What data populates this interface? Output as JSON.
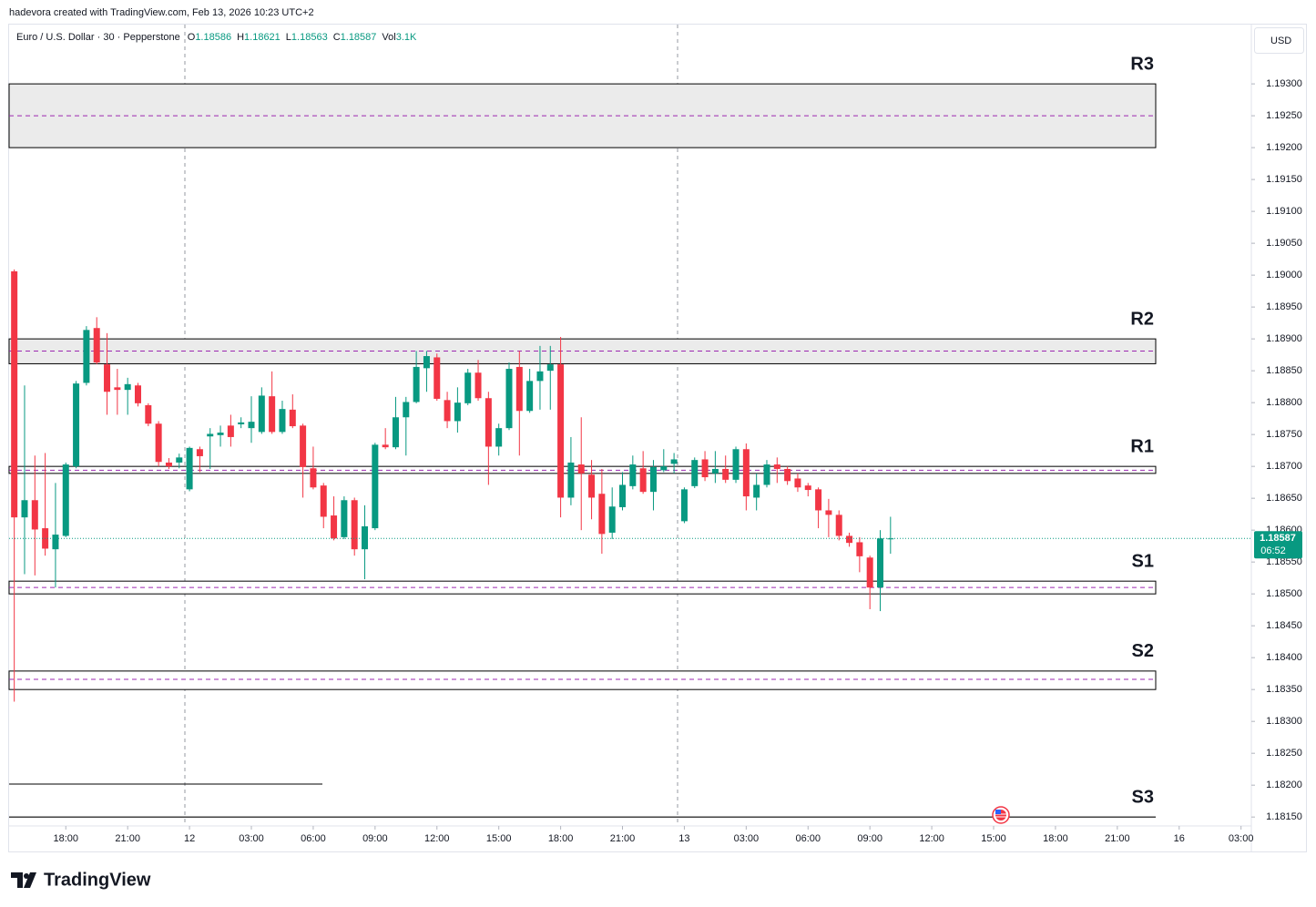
{
  "chart_data": {
    "type": "candlestick",
    "credit": "hadevora created with TradingView.com, Feb 13, 2026 10:23 UTC+2",
    "title": "Euro / U.S. Dollar · 30 · Pepperstone",
    "header_values": [
      {
        "key": "O",
        "value": 1.18586
      },
      {
        "key": "H",
        "value": 1.18621
      },
      {
        "key": "L",
        "value": 1.18563
      },
      {
        "key": "C",
        "value": 1.18587
      },
      {
        "key": "Vol",
        "value": "3.1K"
      }
    ],
    "currency": "USD",
    "logo": "TradingView",
    "up_color": "#089981",
    "down_color": "#f23645",
    "open": [
      1.19006,
      1.1862,
      1.18647,
      1.18603,
      1.1857,
      1.18591,
      1.187,
      1.18831,
      1.18917,
      1.1886,
      1.18824,
      1.1882,
      1.18827,
      1.18796,
      1.18767,
      1.18706,
      1.18706,
      1.18664,
      1.18727,
      1.18747,
      1.18749,
      1.18764,
      1.18766,
      1.1876,
      1.18754,
      1.1881,
      1.18754,
      1.18789,
      1.18764,
      1.18697,
      1.1867,
      1.18623,
      1.18589,
      1.18647,
      1.1857,
      1.18603,
      1.18734,
      1.1873,
      1.18777,
      1.18801,
      1.18854,
      1.18871,
      1.18804,
      1.18771,
      1.18799,
      1.18847,
      1.18807,
      1.18731,
      1.1876,
      1.18856,
      1.18787,
      1.18834,
      1.1885,
      1.1886,
      1.18651,
      1.18703,
      1.18687,
      1.18657,
      1.18596,
      1.18636,
      1.18669,
      1.18697,
      1.1866,
      1.18694,
      1.18704,
      1.18614,
      1.18669,
      1.18711,
      1.18689,
      1.18696,
      1.18679,
      1.18727,
      1.18651,
      1.18671,
      1.18703,
      1.18696,
      1.18681,
      1.1867,
      1.18664,
      1.18631,
      1.18624,
      1.18591,
      1.18581,
      1.18557,
      1.1851,
      1.18586
    ],
    "high": [
      1.19009,
      1.18827,
      1.18717,
      1.18721,
      1.18674,
      1.18706,
      1.18834,
      1.1892,
      1.18934,
      1.18909,
      1.18853,
      1.18839,
      1.18831,
      1.18799,
      1.18771,
      1.18713,
      1.1872,
      1.18731,
      1.18731,
      1.1876,
      1.18764,
      1.18781,
      1.18777,
      1.1881,
      1.18824,
      1.18849,
      1.18803,
      1.18813,
      1.18767,
      1.18731,
      1.18674,
      1.18653,
      1.18653,
      1.18651,
      1.18639,
      1.18737,
      1.1876,
      1.18809,
      1.18809,
      1.18881,
      1.18881,
      1.18877,
      1.18817,
      1.18824,
      1.18853,
      1.18867,
      1.18817,
      1.18767,
      1.18863,
      1.18881,
      1.18853,
      1.18889,
      1.18889,
      1.18903,
      1.18746,
      1.18777,
      1.1871,
      1.18696,
      1.18667,
      1.18691,
      1.18717,
      1.18724,
      1.1871,
      1.18727,
      1.18721,
      1.18667,
      1.18714,
      1.18724,
      1.18724,
      1.18717,
      1.18731,
      1.18736,
      1.18689,
      1.1871,
      1.18714,
      1.187,
      1.18689,
      1.18674,
      1.18667,
      1.18649,
      1.18631,
      1.18596,
      1.18589,
      1.1856,
      1.186,
      1.18621
    ],
    "low": [
      1.18331,
      1.18531,
      1.18529,
      1.1856,
      1.1851,
      1.18589,
      1.18697,
      1.18827,
      1.1886,
      1.18781,
      1.18781,
      1.18781,
      1.18794,
      1.18763,
      1.187,
      1.18696,
      1.18697,
      1.18661,
      1.18691,
      1.18696,
      1.18731,
      1.18731,
      1.1876,
      1.18737,
      1.18751,
      1.18751,
      1.18751,
      1.1876,
      1.18651,
      1.18664,
      1.18603,
      1.18584,
      1.18586,
      1.1856,
      1.18523,
      1.186,
      1.18727,
      1.18727,
      1.18717,
      1.18799,
      1.18817,
      1.18803,
      1.1876,
      1.18753,
      1.18796,
      1.18803,
      1.18671,
      1.18717,
      1.18757,
      1.18717,
      1.18784,
      1.18789,
      1.18789,
      1.1862,
      1.18639,
      1.186,
      1.18617,
      1.18563,
      1.18586,
      1.18631,
      1.18664,
      1.18657,
      1.18631,
      1.18691,
      1.18689,
      1.18611,
      1.18666,
      1.18677,
      1.18674,
      1.18674,
      1.18674,
      1.18631,
      1.18631,
      1.18667,
      1.18674,
      1.18671,
      1.1866,
      1.18653,
      1.18603,
      1.18589,
      1.18584,
      1.18574,
      1.18534,
      1.18476,
      1.18473,
      1.18563
    ],
    "close": [
      1.1862,
      1.18647,
      1.18601,
      1.18571,
      1.18593,
      1.18703,
      1.1883,
      1.18914,
      1.18863,
      1.18817,
      1.1882,
      1.18829,
      1.18799,
      1.18767,
      1.18707,
      1.187,
      1.18714,
      1.18729,
      1.18716,
      1.18751,
      1.18753,
      1.18746,
      1.18769,
      1.1877,
      1.18811,
      1.18754,
      1.1879,
      1.18763,
      1.18699,
      1.18667,
      1.18621,
      1.18587,
      1.18647,
      1.1857,
      1.18606,
      1.18734,
      1.1873,
      1.18777,
      1.18801,
      1.18856,
      1.18873,
      1.18806,
      1.18771,
      1.188,
      1.18847,
      1.18807,
      1.18731,
      1.1876,
      1.18853,
      1.18787,
      1.18834,
      1.18849,
      1.1886,
      1.18651,
      1.18706,
      1.18689,
      1.18651,
      1.18594,
      1.18637,
      1.18671,
      1.18703,
      1.1866,
      1.18699,
      1.187,
      1.18711,
      1.18664,
      1.1871,
      1.18683,
      1.18696,
      1.18679,
      1.18727,
      1.18653,
      1.18671,
      1.18703,
      1.18696,
      1.18677,
      1.18667,
      1.18663,
      1.18631,
      1.18624,
      1.18591,
      1.1858,
      1.18559,
      1.1851,
      1.18587,
      1.18587
    ],
    "last_price": 1.18587,
    "countdown": "06:52",
    "levels": [
      {
        "label": "R3",
        "top": 1.193,
        "bottom": 1.192,
        "mid": 1.1925,
        "color": "#ebebeb"
      },
      {
        "label": "R2",
        "top": 1.189,
        "bottom": 1.18861,
        "mid": 1.18881,
        "color": "#ebebeb"
      },
      {
        "label": "R1",
        "top": 1.187,
        "bottom": 1.18689,
        "mid": 1.18694,
        "color": "#ffffff"
      },
      {
        "label": "S1",
        "top": 1.1852,
        "bottom": 1.185,
        "mid": 1.1851,
        "color": "#ffffff"
      },
      {
        "label": "S2",
        "top": 1.18379,
        "bottom": 1.1835,
        "mid": 1.18366,
        "color": "#ffffff"
      },
      {
        "label": "S3",
        "line": 1.1815
      }
    ],
    "xlim": [
      -0.5,
      120
    ],
    "xticks": [
      {
        "value": 5,
        "label": "18:00"
      },
      {
        "value": 11,
        "label": "21:00"
      },
      {
        "value": 17,
        "label": "12"
      },
      {
        "value": 23,
        "label": "03:00"
      },
      {
        "value": 29,
        "label": "06:00"
      },
      {
        "value": 35,
        "label": "09:00"
      },
      {
        "value": 41,
        "label": "12:00"
      },
      {
        "value": 47,
        "label": "15:00"
      },
      {
        "value": 53,
        "label": "18:00"
      },
      {
        "value": 59,
        "label": "21:00"
      },
      {
        "value": 65,
        "label": "13"
      },
      {
        "value": 71,
        "label": "03:00"
      },
      {
        "value": 77,
        "label": "06:00"
      },
      {
        "value": 83,
        "label": "09:00"
      },
      {
        "value": 89,
        "label": "12:00"
      },
      {
        "value": 95,
        "label": "15:00"
      },
      {
        "value": 101,
        "label": "18:00"
      },
      {
        "value": 107,
        "label": "21:00"
      },
      {
        "value": 113,
        "label": "16"
      },
      {
        "value": 119,
        "label": "03:00"
      }
    ],
    "ylim": [
      1.18096,
      1.19393
    ],
    "yticks": [
      {
        "value": 1.193,
        "label": "1.19300"
      },
      {
        "value": 1.1925,
        "label": "1.19250"
      },
      {
        "value": 1.192,
        "label": "1.19200"
      },
      {
        "value": 1.1915,
        "label": "1.19150"
      },
      {
        "value": 1.191,
        "label": "1.19100"
      },
      {
        "value": 1.1905,
        "label": "1.19050"
      },
      {
        "value": 1.19,
        "label": "1.19000"
      },
      {
        "value": 1.1895,
        "label": "1.18950"
      },
      {
        "value": 1.189,
        "label": "1.18900"
      },
      {
        "value": 1.1885,
        "label": "1.18850"
      },
      {
        "value": 1.188,
        "label": "1.18800"
      },
      {
        "value": 1.1875,
        "label": "1.18750"
      },
      {
        "value": 1.187,
        "label": "1.18700"
      },
      {
        "value": 1.1865,
        "label": "1.18650"
      },
      {
        "value": 1.186,
        "label": "1.18600"
      },
      {
        "value": 1.1855,
        "label": "1.18550"
      },
      {
        "value": 1.185,
        "label": "1.18500"
      },
      {
        "value": 1.1845,
        "label": "1.18450"
      },
      {
        "value": 1.184,
        "label": "1.18400"
      },
      {
        "value": 1.1835,
        "label": "1.18350"
      },
      {
        "value": 1.183,
        "label": "1.18300"
      },
      {
        "value": 1.1825,
        "label": "1.18250"
      },
      {
        "value": 1.182,
        "label": "1.18200"
      },
      {
        "value": 1.1815,
        "label": "1.18150"
      }
    ]
  }
}
